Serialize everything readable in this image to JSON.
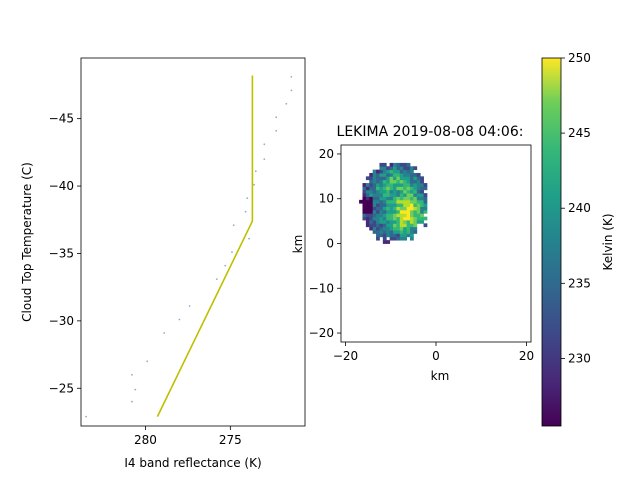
{
  "chart_data": [
    {
      "type": "line",
      "xlabel": "I4 band reflectance (K)",
      "ylabel": "Cloud Top Temperature (C)",
      "x_inverted": true,
      "y_inverted": true,
      "xlim": [
        283.8,
        270.6
      ],
      "ylim": [
        -22.2,
        -49.5
      ],
      "xticks": [
        280,
        275
      ],
      "yticks": [
        -25,
        -30,
        -35,
        -40,
        -45
      ],
      "xtick_labels": [
        "280",
        "275"
      ],
      "ytick_labels": [
        "−25",
        "−30",
        "−35",
        "−40",
        "−45"
      ],
      "fit_line": {
        "color": "#bfbf00",
        "points": [
          [
            279.3,
            -22.9
          ],
          [
            273.7,
            -37.4
          ],
          [
            273.7,
            -48.2
          ]
        ]
      },
      "scatter": {
        "color": "#8fb0c8",
        "points": [
          [
            283.5,
            -22.9
          ],
          [
            280.8,
            -24.0
          ],
          [
            280.6,
            -24.9
          ],
          [
            280.8,
            -26.0
          ],
          [
            279.9,
            -27.0
          ],
          [
            278.9,
            -29.1
          ],
          [
            278.0,
            -30.1
          ],
          [
            277.4,
            -31.1
          ],
          [
            275.8,
            -33.1
          ],
          [
            275.3,
            -34.1
          ],
          [
            274.9,
            -35.1
          ],
          [
            273.9,
            -36.1
          ],
          [
            274.8,
            -37.1
          ],
          [
            274.1,
            -38.1
          ],
          [
            274.0,
            -39.1
          ],
          [
            273.6,
            -40.1
          ],
          [
            273.5,
            -41.1
          ],
          [
            273.0,
            -42.0
          ],
          [
            273.0,
            -43.1
          ],
          [
            272.3,
            -44.1
          ],
          [
            272.3,
            -45.1
          ],
          [
            271.7,
            -46.1
          ],
          [
            271.4,
            -47.1
          ],
          [
            271.4,
            -48.1
          ]
        ]
      }
    },
    {
      "type": "heatmap",
      "title": "LEKIMA 2019-08-08 04:06:",
      "xlabel": "km",
      "ylabel": "km",
      "xlim": [
        -21,
        21
      ],
      "ylim": [
        -22,
        22
      ],
      "xticks": [
        -20,
        0,
        20
      ],
      "yticks": [
        -20,
        -10,
        0,
        10,
        20
      ],
      "xtick_labels": [
        "−20",
        "0",
        "20"
      ],
      "ytick_labels": [
        "−20",
        "−10",
        "0",
        "10",
        "20"
      ],
      "storm_extent_km": {
        "x": [
          -17,
          -2
        ],
        "y": [
          0,
          18
        ]
      },
      "colorbar": {
        "label": "Kelvin (K)",
        "colormap": "viridis",
        "range": [
          225.5,
          250
        ],
        "ticks": [
          230,
          235,
          240,
          245,
          250
        ],
        "tick_labels": [
          "230",
          "235",
          "240",
          "245",
          "250"
        ]
      }
    }
  ]
}
